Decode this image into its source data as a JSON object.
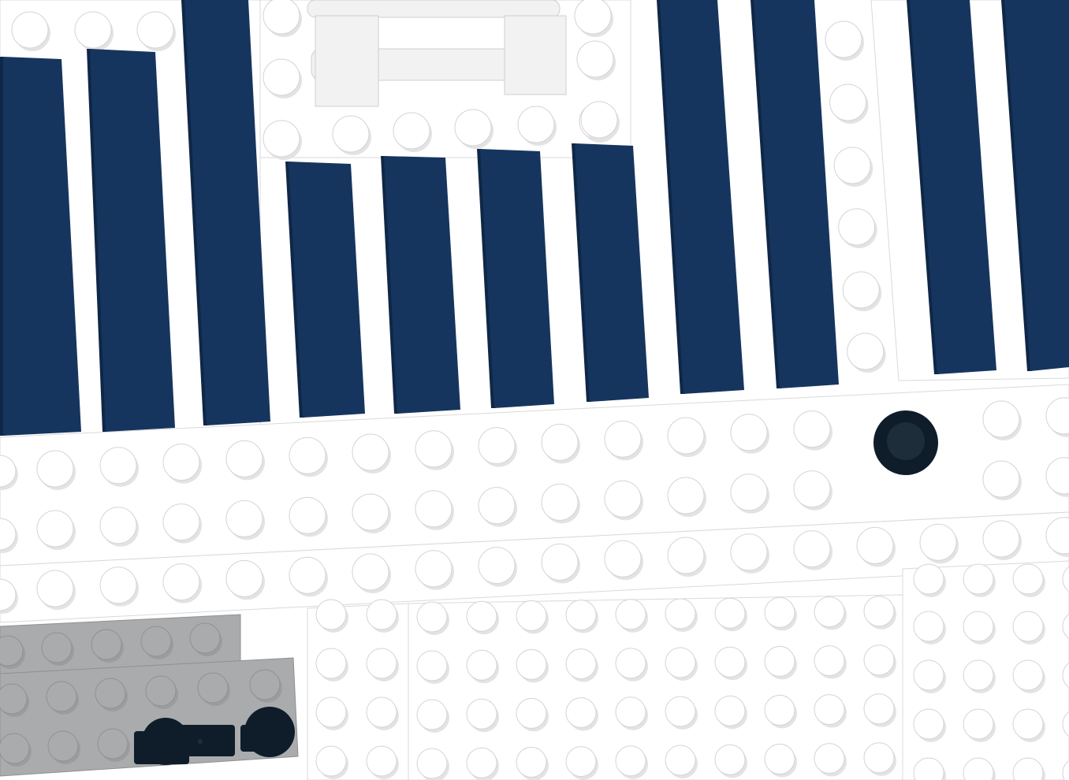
{
  "scene": {
    "subject": "brick-model-top-view",
    "colors": {
      "background_plate": "#ffffff",
      "dark_blue_tile": "#16355e",
      "gray_plate": "#a9abad",
      "black_part": "#0e1d29"
    },
    "icon_names": [
      "stud-icon",
      "black-round-plate-icon",
      "clip-connector-icon"
    ]
  }
}
